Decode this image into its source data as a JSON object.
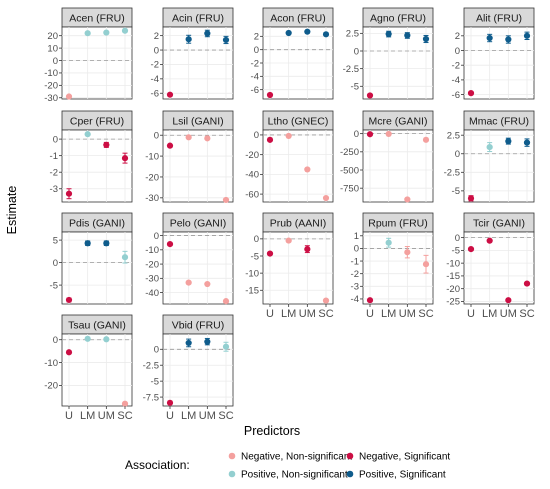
{
  "xlabel": "Predictors",
  "ylabel": "Estimate",
  "categories": [
    "U",
    "LM",
    "UM",
    "SC"
  ],
  "legend": {
    "title": "Association:",
    "entries": [
      {
        "key": "neg_ns",
        "label": "Negative, Non-significant",
        "color": "#f4a09e"
      },
      {
        "key": "neg_s",
        "label": "Negative, Significant",
        "color": "#cc0e44"
      },
      {
        "key": "pos_ns",
        "label": "Positive, Non-significant",
        "color": "#93cfd0"
      },
      {
        "key": "pos_s",
        "label": "Positive, Significant",
        "color": "#0f5c8c"
      }
    ]
  },
  "chart_data": {
    "type": "scatter",
    "panels": [
      {
        "title": "Acen (FRU)",
        "yticks": [
          -30,
          -20,
          -10,
          0,
          10,
          20
        ],
        "ylim": [
          -31,
          27
        ],
        "points": [
          {
            "x": "U",
            "y": -29,
            "cls": "neg_ns"
          },
          {
            "x": "LM",
            "y": 22,
            "cls": "pos_ns"
          },
          {
            "x": "UM",
            "y": 22.5,
            "cls": "pos_ns"
          },
          {
            "x": "SC",
            "y": 24,
            "cls": "pos_ns"
          }
        ]
      },
      {
        "title": "Acin (FRU)",
        "yticks": [
          -6,
          -4,
          -2,
          0,
          2
        ],
        "ylim": [
          -6.8,
          3.2
        ],
        "points": [
          {
            "x": "U",
            "y": -6.2,
            "cls": "neg_s"
          },
          {
            "x": "LM",
            "y": 1.5,
            "cls": "pos_s",
            "err": 0.55
          },
          {
            "x": "UM",
            "y": 2.3,
            "cls": "pos_s",
            "err": 0.45
          },
          {
            "x": "SC",
            "y": 1.4,
            "cls": "pos_s",
            "err": 0.5
          }
        ]
      },
      {
        "title": "Acon (FRU)",
        "yticks": [
          -6,
          -4,
          -2,
          0,
          2
        ],
        "ylim": [
          -7.4,
          3.4
        ],
        "points": [
          {
            "x": "U",
            "y": -6.8,
            "cls": "neg_s"
          },
          {
            "x": "LM",
            "y": 2.5,
            "cls": "pos_s"
          },
          {
            "x": "UM",
            "y": 2.7,
            "cls": "pos_s"
          },
          {
            "x": "SC",
            "y": 2.3,
            "cls": "pos_s"
          }
        ]
      },
      {
        "title": "Agno (FRU)",
        "yticks": [
          -5,
          -2.5,
          0,
          2.5
        ],
        "ylim": [
          -6.8,
          3.4
        ],
        "points": [
          {
            "x": "U",
            "y": -6.3,
            "cls": "neg_s"
          },
          {
            "x": "LM",
            "y": 2.4,
            "cls": "pos_s",
            "err": 0.4
          },
          {
            "x": "UM",
            "y": 2.2,
            "cls": "pos_s",
            "err": 0.4
          },
          {
            "x": "SC",
            "y": 1.7,
            "cls": "pos_s",
            "err": 0.5
          }
        ]
      },
      {
        "title": "Alit (FRU)",
        "yticks": [
          -6,
          -4,
          -2,
          0,
          2
        ],
        "ylim": [
          -6.6,
          3.2
        ],
        "points": [
          {
            "x": "U",
            "y": -5.8,
            "cls": "neg_s"
          },
          {
            "x": "LM",
            "y": 1.7,
            "cls": "pos_s",
            "err": 0.5
          },
          {
            "x": "UM",
            "y": 1.5,
            "cls": "pos_s",
            "err": 0.5
          },
          {
            "x": "SC",
            "y": 2.0,
            "cls": "pos_s",
            "err": 0.5
          }
        ]
      },
      {
        "title": "Cper (FRU)",
        "yticks": [
          -3,
          -2,
          -1,
          0
        ],
        "ylim": [
          -3.8,
          0.55
        ],
        "points": [
          {
            "x": "U",
            "y": -3.3,
            "cls": "neg_s",
            "err": 0.3
          },
          {
            "x": "LM",
            "y": 0.3,
            "cls": "pos_ns"
          },
          {
            "x": "UM",
            "y": -0.35,
            "cls": "neg_s",
            "err": 0.15
          },
          {
            "x": "SC",
            "y": -1.15,
            "cls": "neg_s",
            "err": 0.3
          }
        ]
      },
      {
        "title": "Lsil (GANI)",
        "yticks": [
          -30,
          -20,
          -10,
          0
        ],
        "ylim": [
          -32,
          2.5
        ],
        "points": [
          {
            "x": "U",
            "y": -5,
            "cls": "neg_s"
          },
          {
            "x": "LM",
            "y": -1,
            "cls": "neg_ns"
          },
          {
            "x": "UM",
            "y": -1.5,
            "cls": "neg_ns"
          },
          {
            "x": "SC",
            "y": -31,
            "cls": "neg_ns"
          }
        ]
      },
      {
        "title": "Ltho (GNEC)",
        "yticks": [
          -60,
          -40,
          -20,
          0
        ],
        "ylim": [
          -68,
          5
        ],
        "points": [
          {
            "x": "U",
            "y": -5,
            "cls": "neg_s"
          },
          {
            "x": "LM",
            "y": -1,
            "cls": "neg_ns"
          },
          {
            "x": "UM",
            "y": -35,
            "cls": "neg_ns"
          },
          {
            "x": "SC",
            "y": -64,
            "cls": "neg_ns"
          }
        ]
      },
      {
        "title": "Mcre (GANI)",
        "yticks": [
          -750,
          -500,
          -250,
          0
        ],
        "ylim": [
          -940,
          50
        ],
        "points": [
          {
            "x": "U",
            "y": -8,
            "cls": "neg_s"
          },
          {
            "x": "LM",
            "y": -4,
            "cls": "neg_ns"
          },
          {
            "x": "UM",
            "y": -905,
            "cls": "neg_ns"
          },
          {
            "x": "SC",
            "y": -85,
            "cls": "neg_ns"
          }
        ]
      },
      {
        "title": "Mmac (FRU)",
        "yticks": [
          -5,
          -2.5,
          0,
          2.5
        ],
        "ylim": [
          -6.5,
          3.2
        ],
        "points": [
          {
            "x": "U",
            "y": -6.0,
            "cls": "neg_s",
            "err": 0.35
          },
          {
            "x": "LM",
            "y": 0.9,
            "cls": "pos_ns",
            "err": 0.6
          },
          {
            "x": "UM",
            "y": 1.7,
            "cls": "pos_s",
            "err": 0.4
          },
          {
            "x": "SC",
            "y": 1.5,
            "cls": "pos_s",
            "err": 0.5
          }
        ]
      },
      {
        "title": "Pdis (GANI)",
        "yticks": [
          -5,
          0,
          5
        ],
        "ylim": [
          -9.2,
          6.8
        ],
        "points": [
          {
            "x": "U",
            "y": -8.3,
            "cls": "neg_s",
            "err": 0.4
          },
          {
            "x": "LM",
            "y": 4.3,
            "cls": "pos_s",
            "err": 0.5
          },
          {
            "x": "UM",
            "y": 4.3,
            "cls": "pos_s",
            "err": 0.5
          },
          {
            "x": "SC",
            "y": 1.2,
            "cls": "pos_ns",
            "err": 1.3
          }
        ]
      },
      {
        "title": "Pelo (GANI)",
        "yticks": [
          -40,
          -30,
          -20,
          -10,
          0
        ],
        "ylim": [
          -48,
          2.5
        ],
        "points": [
          {
            "x": "U",
            "y": -6,
            "cls": "neg_s"
          },
          {
            "x": "LM",
            "y": -33,
            "cls": "neg_ns"
          },
          {
            "x": "UM",
            "y": -34,
            "cls": "neg_ns"
          },
          {
            "x": "SC",
            "y": -46,
            "cls": "neg_ns"
          }
        ]
      },
      {
        "title": "Prub (AANI)",
        "yticks": [
          -15,
          -10,
          -5,
          0
        ],
        "ylim": [
          -19,
          2
        ],
        "points": [
          {
            "x": "U",
            "y": -4.3,
            "cls": "neg_s"
          },
          {
            "x": "LM",
            "y": -0.5,
            "cls": "neg_ns"
          },
          {
            "x": "UM",
            "y": -3.0,
            "cls": "neg_s",
            "err": 1.0
          },
          {
            "x": "SC",
            "y": -18,
            "cls": "neg_ns"
          }
        ]
      },
      {
        "title": "Rpum (FRU)",
        "yticks": [
          -4,
          -3,
          -2,
          -1,
          0,
          1
        ],
        "ylim": [
          -4.4,
          1.3
        ],
        "points": [
          {
            "x": "U",
            "y": -4.1,
            "cls": "neg_s"
          },
          {
            "x": "LM",
            "y": 0.45,
            "cls": "pos_ns",
            "err": 0.35
          },
          {
            "x": "UM",
            "y": -0.3,
            "cls": "neg_ns",
            "err": 0.45
          },
          {
            "x": "SC",
            "y": -1.25,
            "cls": "neg_ns",
            "err": 0.7
          }
        ]
      },
      {
        "title": "Tcir (GANI)",
        "yticks": [
          -25,
          -20,
          -15,
          -10,
          -5,
          0
        ],
        "ylim": [
          -26,
          2.2
        ],
        "points": [
          {
            "x": "U",
            "y": -4.5,
            "cls": "neg_s"
          },
          {
            "x": "LM",
            "y": -1.2,
            "cls": "neg_s"
          },
          {
            "x": "UM",
            "y": -24.5,
            "cls": "neg_s"
          },
          {
            "x": "SC",
            "y": -18,
            "cls": "neg_s"
          }
        ]
      },
      {
        "title": "Tsau (GANI)",
        "yticks": [
          -20,
          -10,
          0
        ],
        "ylim": [
          -29,
          2.5
        ],
        "points": [
          {
            "x": "U",
            "y": -5.5,
            "cls": "neg_s"
          },
          {
            "x": "LM",
            "y": 0.4,
            "cls": "pos_ns"
          },
          {
            "x": "UM",
            "y": 0.2,
            "cls": "pos_ns"
          },
          {
            "x": "SC",
            "y": -28,
            "cls": "neg_ns"
          }
        ]
      },
      {
        "title": "Vbid (FRU)",
        "yticks": [
          -7.5,
          -5,
          -2.5,
          0
        ],
        "ylim": [
          -8.9,
          2.4
        ],
        "points": [
          {
            "x": "U",
            "y": -8.4,
            "cls": "neg_s"
          },
          {
            "x": "LM",
            "y": 1.0,
            "cls": "pos_s",
            "err": 0.6
          },
          {
            "x": "UM",
            "y": 1.2,
            "cls": "pos_s",
            "err": 0.5
          },
          {
            "x": "SC",
            "y": 0.4,
            "cls": "pos_ns",
            "err": 0.7
          }
        ]
      }
    ]
  }
}
